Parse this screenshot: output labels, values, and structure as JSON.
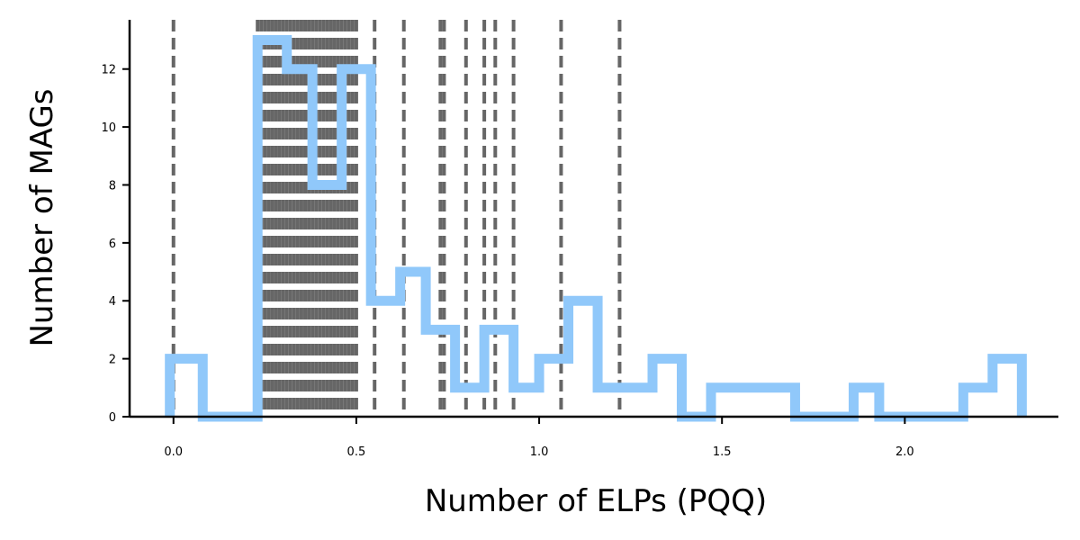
{
  "chart_data": {
    "type": "histogram",
    "title": "",
    "xlabel": "Number of ELPs (PQQ)",
    "ylabel": "Number of MAGs",
    "xlim": [
      -0.12,
      2.42
    ],
    "ylim": [
      0,
      13.7
    ],
    "x_ticks": [
      0.0,
      0.5,
      1.0,
      1.5,
      2.0
    ],
    "x_tick_labels": [
      "0.0",
      "0.5",
      "1.0",
      "1.5",
      "2.0"
    ],
    "y_ticks": [
      0,
      2,
      4,
      6,
      8,
      10,
      12
    ],
    "y_tick_labels": [
      "0",
      "2",
      "4",
      "6",
      "8",
      "10",
      "12"
    ],
    "grid": false,
    "histogram": {
      "color": "#90c8fa",
      "style": "step",
      "bins": [
        {
          "x0": -0.01,
          "x1": 0.08,
          "count": 2
        },
        {
          "x0": 0.08,
          "x1": 0.23,
          "count": 0
        },
        {
          "x0": 0.23,
          "x1": 0.31,
          "count": 13
        },
        {
          "x0": 0.31,
          "x1": 0.38,
          "count": 12
        },
        {
          "x0": 0.38,
          "x1": 0.46,
          "count": 8
        },
        {
          "x0": 0.46,
          "x1": 0.54,
          "count": 12
        },
        {
          "x0": 0.54,
          "x1": 0.62,
          "count": 4
        },
        {
          "x0": 0.62,
          "x1": 0.69,
          "count": 5
        },
        {
          "x0": 0.69,
          "x1": 0.77,
          "count": 3
        },
        {
          "x0": 0.77,
          "x1": 0.85,
          "count": 1
        },
        {
          "x0": 0.85,
          "x1": 0.93,
          "count": 3
        },
        {
          "x0": 0.93,
          "x1": 1.0,
          "count": 1
        },
        {
          "x0": 1.0,
          "x1": 1.08,
          "count": 2
        },
        {
          "x0": 1.08,
          "x1": 1.16,
          "count": 4
        },
        {
          "x0": 1.16,
          "x1": 1.31,
          "count": 1
        },
        {
          "x0": 1.31,
          "x1": 1.39,
          "count": 2
        },
        {
          "x0": 1.39,
          "x1": 1.47,
          "count": 0
        },
        {
          "x0": 1.47,
          "x1": 1.7,
          "count": 1
        },
        {
          "x0": 1.7,
          "x1": 1.86,
          "count": 0
        },
        {
          "x0": 1.86,
          "x1": 1.93,
          "count": 1
        },
        {
          "x0": 1.93,
          "x1": 2.16,
          "count": 0
        },
        {
          "x0": 2.16,
          "x1": 2.24,
          "count": 1
        },
        {
          "x0": 2.24,
          "x1": 2.32,
          "count": 2
        }
      ]
    },
    "vertical_lines": {
      "color": "#000000",
      "style": "dashed",
      "x": [
        0.0,
        0.23,
        0.24,
        0.25,
        0.26,
        0.27,
        0.28,
        0.29,
        0.3,
        0.31,
        0.32,
        0.33,
        0.34,
        0.35,
        0.36,
        0.37,
        0.38,
        0.39,
        0.4,
        0.41,
        0.42,
        0.43,
        0.44,
        0.45,
        0.46,
        0.47,
        0.48,
        0.49,
        0.5,
        0.55,
        0.63,
        0.73,
        0.74,
        0.8,
        0.85,
        0.88,
        0.93,
        1.06,
        1.22
      ]
    }
  }
}
